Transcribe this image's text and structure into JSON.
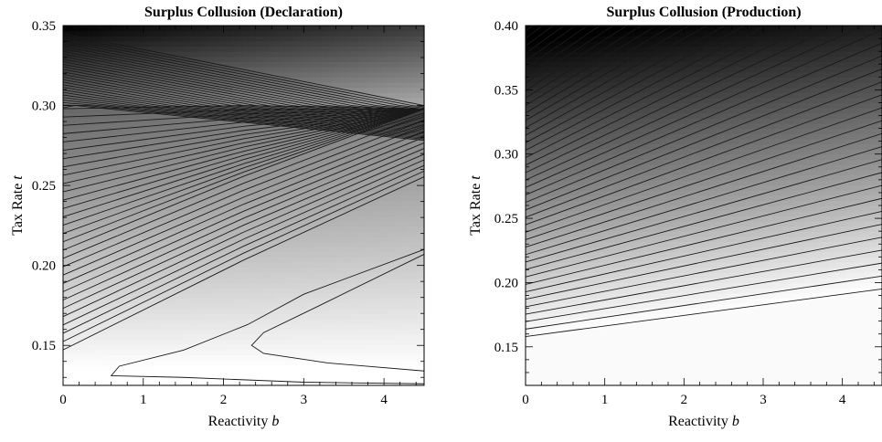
{
  "chart_data": [
    {
      "type": "heatmap",
      "title": "Surplus Collusion (Declaration)",
      "xlabel": "Reactivity",
      "xlabel_var": "b",
      "ylabel": "Tax Rate",
      "ylabel_var": "t",
      "xlim": [
        0,
        4.5
      ],
      "ylim": [
        0.125,
        0.35
      ],
      "xticks": [
        "0",
        "1",
        "2",
        "3",
        "4"
      ],
      "yticks": [
        "0.15",
        "0.20",
        "0.25",
        "0.30",
        "0.35"
      ],
      "colormap": "grayscale (darker = higher value)",
      "contour_lines": true,
      "kink_line_t": 0.3,
      "innermost_contour": [
        {
          "b": 4.5,
          "t": 0.126
        },
        {
          "b": 3.0,
          "t": 0.127
        },
        {
          "b": 1.5,
          "t": 0.13
        },
        {
          "b": 0.6,
          "t": 0.131
        },
        {
          "b": 0.7,
          "t": 0.137
        },
        {
          "b": 1.5,
          "t": 0.147
        },
        {
          "b": 2.3,
          "t": 0.163
        },
        {
          "b": 3.0,
          "t": 0.182
        },
        {
          "b": 4.5,
          "t": 0.21
        }
      ],
      "second_contour": [
        {
          "b": 4.5,
          "t": 0.134
        },
        {
          "b": 3.3,
          "t": 0.139
        },
        {
          "b": 2.5,
          "t": 0.145
        },
        {
          "b": 2.35,
          "t": 0.15
        },
        {
          "b": 2.5,
          "t": 0.158
        },
        {
          "b": 3.2,
          "t": 0.175
        },
        {
          "b": 4.5,
          "t": 0.207
        }
      ]
    },
    {
      "type": "heatmap",
      "title": "Surplus Collusion (Production)",
      "xlabel": "Reactivity",
      "xlabel_var": "b",
      "ylabel": "Tax Rate",
      "ylabel_var": "t",
      "xlim": [
        0,
        4.5
      ],
      "ylim": [
        0.12,
        0.4
      ],
      "xticks": [
        "0",
        "1",
        "2",
        "3",
        "4"
      ],
      "yticks": [
        "0.15",
        "0.20",
        "0.25",
        "0.30",
        "0.35",
        "0.40"
      ],
      "colormap": "grayscale (darker = higher value)",
      "contour_lines": true,
      "lowest_contour": [
        {
          "b": 0,
          "t": 0.158
        },
        {
          "b": 4.5,
          "t": 0.195
        }
      ],
      "darkest_corner": {
        "b": 0,
        "t": 0.4
      }
    }
  ]
}
